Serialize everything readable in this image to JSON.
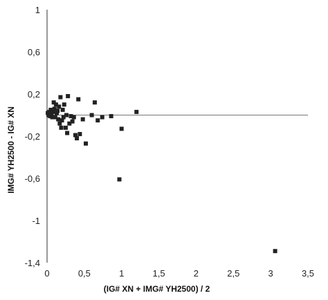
{
  "chart_data": {
    "type": "scatter",
    "title": "",
    "xlabel": "(IG# XN + IMG# YH2500) / 2",
    "ylabel": "IMG# YH2500 - IG# XN",
    "xlim": [
      0,
      3.5
    ],
    "ylim": [
      -1.4,
      1
    ],
    "x_ticks": [
      0,
      0.5,
      1,
      1.5,
      2,
      2.5,
      3,
      3.5
    ],
    "y_ticks": [
      -1.4,
      -1,
      -0.6,
      -0.2,
      0.2,
      0.6,
      1
    ],
    "x_tick_labels": [
      "0",
      "0,5",
      "1",
      "1,5",
      "2",
      "2,5",
      "3",
      "3,5"
    ],
    "y_tick_labels": [
      "-1,4",
      "-1",
      "-0,6",
      "-0,2",
      "0,2",
      "0,6",
      "1"
    ],
    "grid": false,
    "reference_line_y": 0,
    "marker": "square",
    "marker_color": "#222222",
    "points": [
      {
        "x": 0.01,
        "y": 0.02
      },
      {
        "x": 0.02,
        "y": 0.0
      },
      {
        "x": 0.03,
        "y": 0.03
      },
      {
        "x": 0.04,
        "y": -0.01
      },
      {
        "x": 0.05,
        "y": 0.05
      },
      {
        "x": 0.06,
        "y": 0.01
      },
      {
        "x": 0.07,
        "y": -0.02
      },
      {
        "x": 0.08,
        "y": 0.03
      },
      {
        "x": 0.09,
        "y": 0.12
      },
      {
        "x": 0.1,
        "y": 0.06
      },
      {
        "x": 0.11,
        "y": -0.02
      },
      {
        "x": 0.12,
        "y": 0.1
      },
      {
        "x": 0.13,
        "y": 0.02
      },
      {
        "x": 0.14,
        "y": 0.04
      },
      {
        "x": 0.15,
        "y": -0.04
      },
      {
        "x": 0.16,
        "y": 0.08
      },
      {
        "x": 0.17,
        "y": -0.08
      },
      {
        "x": 0.18,
        "y": 0.17
      },
      {
        "x": 0.19,
        "y": -0.12
      },
      {
        "x": 0.2,
        "y": -0.05
      },
      {
        "x": 0.21,
        "y": 0.05
      },
      {
        "x": 0.22,
        "y": -0.02
      },
      {
        "x": 0.23,
        "y": 0.1
      },
      {
        "x": 0.25,
        "y": -0.12
      },
      {
        "x": 0.26,
        "y": 0.0
      },
      {
        "x": 0.27,
        "y": -0.17
      },
      {
        "x": 0.28,
        "y": 0.18
      },
      {
        "x": 0.3,
        "y": -0.08
      },
      {
        "x": 0.32,
        "y": -0.01
      },
      {
        "x": 0.34,
        "y": -0.06
      },
      {
        "x": 0.36,
        "y": -0.02
      },
      {
        "x": 0.38,
        "y": -0.19
      },
      {
        "x": 0.4,
        "y": -0.22
      },
      {
        "x": 0.42,
        "y": 0.15
      },
      {
        "x": 0.44,
        "y": -0.18
      },
      {
        "x": 0.48,
        "y": -0.04
      },
      {
        "x": 0.52,
        "y": -0.27
      },
      {
        "x": 0.6,
        "y": 0.0
      },
      {
        "x": 0.64,
        "y": 0.12
      },
      {
        "x": 0.68,
        "y": -0.05
      },
      {
        "x": 0.74,
        "y": -0.02
      },
      {
        "x": 0.86,
        "y": -0.01
      },
      {
        "x": 0.97,
        "y": -0.61
      },
      {
        "x": 1.0,
        "y": -0.13
      },
      {
        "x": 1.2,
        "y": 0.03
      },
      {
        "x": 3.06,
        "y": -1.29
      }
    ]
  }
}
